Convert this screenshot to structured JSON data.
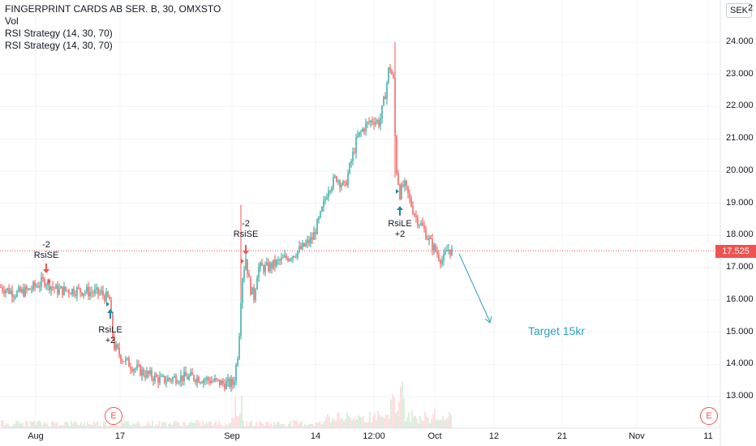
{
  "legend": {
    "symbol": "FINGERPRINT CARDS AB SER. B, 30, OMXSTO",
    "volume": "Vol",
    "strategy_1": "RSI Strategy (14, 30, 70)",
    "strategy_2": "RSI Strategy (14, 30, 70)"
  },
  "currency": "SEK",
  "last_price": "17.525",
  "y_axis_labels": [
    "24.000",
    "23.000",
    "22.000",
    "21.000",
    "20.000",
    "19.000",
    "18.000",
    "17.000",
    "16.000",
    "15.000",
    "14.000",
    "13.000"
  ],
  "y_axis_top_partial": "2",
  "x_axis_labels": [
    "Aug",
    "17",
    "Sep",
    "14",
    "12:00",
    "Oct",
    "12",
    "21",
    "Nov",
    "11"
  ],
  "signals": {
    "short_1": {
      "qty": "-2",
      "label": "RsiSE"
    },
    "long_1": {
      "label": "RsiLE",
      "qty": "+2"
    },
    "short_2": {
      "qty": "-2",
      "label": "RsiSE"
    },
    "long_2": {
      "label": "RsiLE",
      "qty": "+2"
    }
  },
  "annotation": "Target 15kr",
  "earnings_badge": "E",
  "colors": {
    "up": "#26a69a",
    "down": "#ef5350",
    "annotation": "#2a9fbf",
    "grid": "#f0f3fa"
  },
  "chart_data": {
    "type": "candlestick",
    "y_range": [
      12.5,
      24.8
    ],
    "x_ticks": [
      "Aug",
      "17",
      "Sep",
      "14",
      "12:00",
      "Oct",
      "12",
      "21",
      "Nov",
      "11"
    ],
    "close_path": [
      [
        "Aug (start)",
        16.4
      ],
      [
        "Aug",
        16.2
      ],
      [
        "early Aug",
        16.6
      ],
      [
        "mid Aug",
        16.3
      ],
      [
        "before 17",
        16.1
      ],
      [
        "17",
        14.4
      ],
      [
        "after 17",
        13.9
      ],
      [
        "late Aug",
        13.6
      ],
      [
        "end Aug",
        13.4
      ],
      [
        "Sep",
        17.0
      ],
      [
        "early Sep",
        17.2
      ],
      [
        "mid Sep",
        17.8
      ],
      [
        "14",
        19.5
      ],
      [
        "12:00",
        22.0
      ],
      [
        "peak",
        23.5
      ],
      [
        "after peak",
        19.5
      ],
      [
        "late Sep",
        18.8
      ],
      [
        "Oct",
        17.5
      ]
    ],
    "last": 17.525,
    "target": 15.0
  }
}
